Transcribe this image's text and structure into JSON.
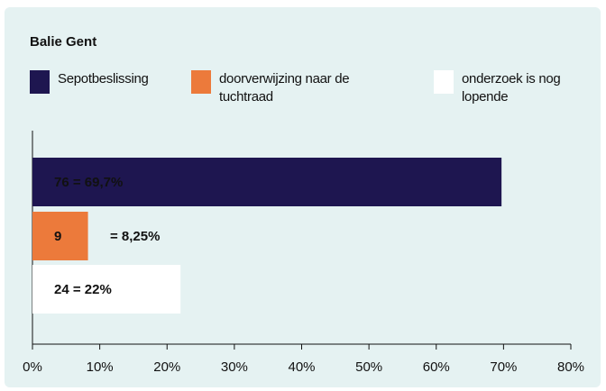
{
  "chart_data": {
    "type": "hbar",
    "title": "Balie Gent",
    "series": [
      {
        "name": "Sepotbeslissing",
        "color": "#1e1650",
        "values": [
          69.7
        ],
        "value_labels": [
          "76 = 69,7%"
        ]
      },
      {
        "name": "doorverwijzing naar de tuchtraad",
        "color": "#ec7a3b",
        "values": [
          8.25
        ],
        "value_labels": [
          "= 8,25%"
        ],
        "inner_label": "9"
      },
      {
        "name": "onderzoek is nog lopende",
        "color": "#ffffff",
        "values": [
          22
        ],
        "value_labels": [
          "24 = 22%"
        ]
      }
    ],
    "xlim": [
      0,
      80
    ],
    "xticks": [
      {
        "value": 0,
        "label": "0%"
      },
      {
        "value": 10,
        "label": "10%"
      },
      {
        "value": 20,
        "label": "20%"
      },
      {
        "value": 30,
        "label": "30%"
      },
      {
        "value": 40,
        "label": "40%"
      },
      {
        "value": 50,
        "label": "50%"
      },
      {
        "value": 60,
        "label": "60%"
      },
      {
        "value": 70,
        "label": "70%"
      },
      {
        "value": 80,
        "label": "80%"
      }
    ]
  }
}
